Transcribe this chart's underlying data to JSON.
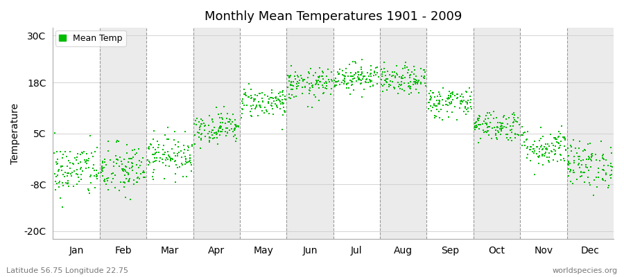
{
  "title": "Monthly Mean Temperatures 1901 - 2009",
  "ylabel": "Temperature",
  "yticks": [
    -20,
    -8,
    5,
    18,
    30
  ],
  "ytick_labels": [
    "-20C",
    "-8C",
    "5C",
    "18C",
    "30C"
  ],
  "ylim": [
    -22,
    32
  ],
  "months": [
    "Jan",
    "Feb",
    "Mar",
    "Apr",
    "May",
    "Jun",
    "Jul",
    "Aug",
    "Sep",
    "Oct",
    "Nov",
    "Dec"
  ],
  "dot_color": "#00BB00",
  "dot_size": 3,
  "bg_color": "#FFFFFF",
  "band_color": "#EBEBEB",
  "fig_bg_color": "#FFFFFF",
  "legend_label": "Mean Temp",
  "bottom_left_text": "Latitude 56.75 Longitude 22.75",
  "bottom_right_text": "worldspecies.org",
  "mean_temps": [
    -4.5,
    -4.5,
    -0.5,
    6.5,
    13.0,
    17.5,
    19.5,
    18.5,
    13.0,
    7.0,
    1.5,
    -3.0
  ],
  "std_devs": [
    3.5,
    3.5,
    2.5,
    2.0,
    2.0,
    2.0,
    1.8,
    1.8,
    2.0,
    2.0,
    2.5,
    3.0
  ],
  "n_years": 109,
  "dashed_line_color": "#999999",
  "grid_color": "#CCCCCC",
  "title_fontsize": 13,
  "axis_fontsize": 10,
  "legend_fontsize": 9,
  "annot_fontsize": 8
}
